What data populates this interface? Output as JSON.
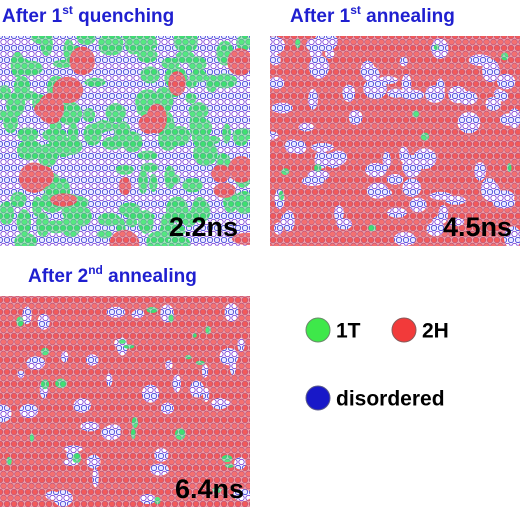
{
  "panels": [
    {
      "title_prefix": "After 1",
      "title_sup": "st",
      "title_suffix": " quenching",
      "time": "2.2ns"
    },
    {
      "title_prefix": "After 1",
      "title_sup": "st",
      "title_suffix": " annealing",
      "time": "4.5ns"
    },
    {
      "title_prefix": "After 2",
      "title_sup": "nd",
      "title_suffix": " annealing",
      "time": "6.4ns"
    }
  ],
  "legend": {
    "items": [
      "1T",
      "2H",
      "disordered"
    ]
  }
}
